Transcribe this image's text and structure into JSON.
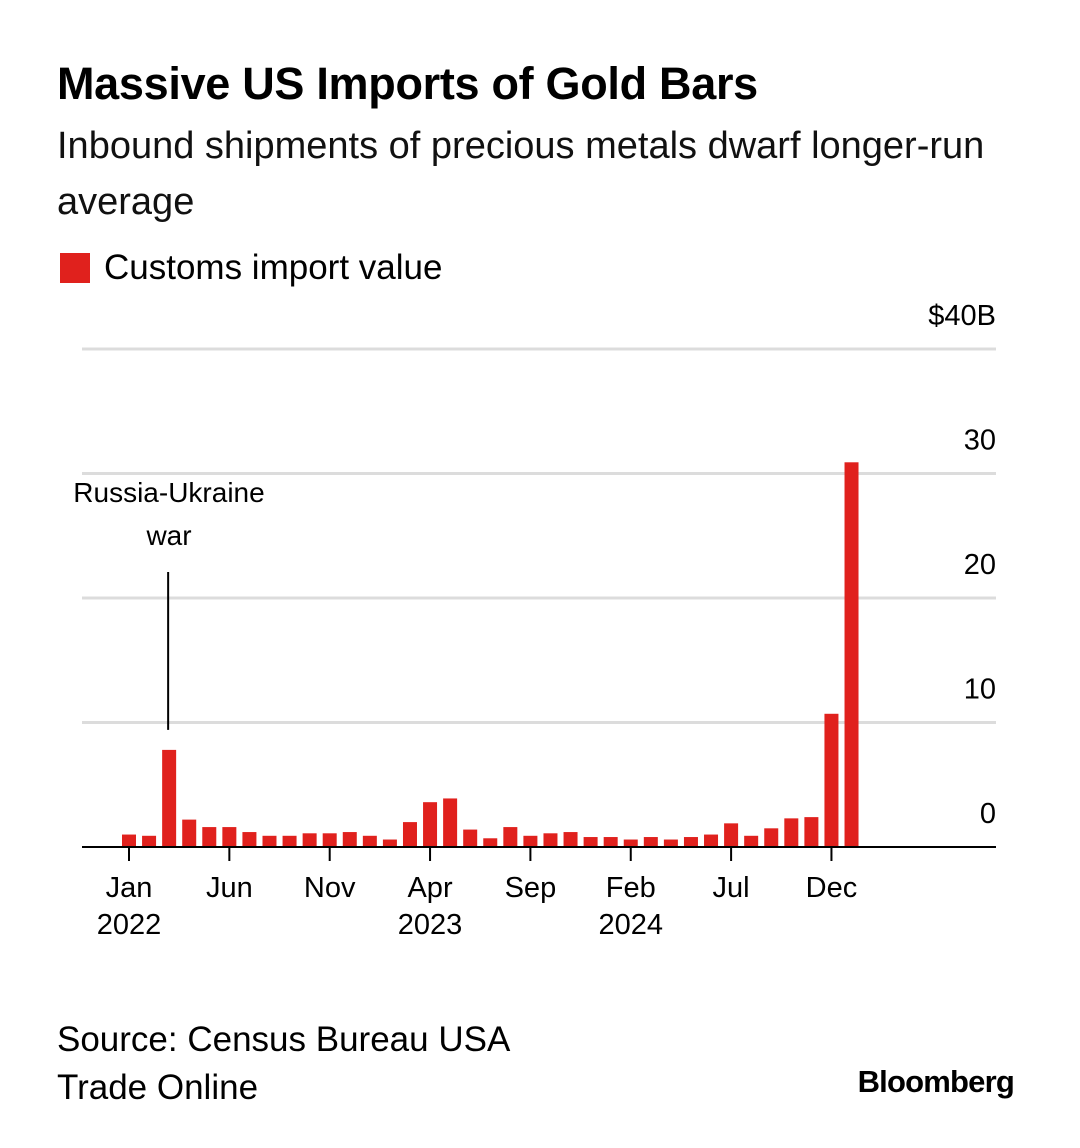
{
  "header": {
    "title": "Massive US Imports of Gold Bars",
    "subtitle": "Inbound shipments of precious metals dwarf longer-run average"
  },
  "legend": {
    "label": "Customs import value",
    "color": "#e0211d"
  },
  "source": {
    "line1": "Source: Census Bureau USA",
    "line2": "Trade Online"
  },
  "brand": {
    "name": "Bloomberg"
  },
  "colors": {
    "bar": "#e0211d",
    "grid": "#dcdcdc",
    "axis": "#000000"
  },
  "chart_data": {
    "type": "bar",
    "title": "Massive US Imports of Gold Bars",
    "subtitle": "Inbound shipments of precious metals dwarf longer-run average",
    "xlabel": "",
    "ylabel": "",
    "ylim": [
      0,
      40
    ],
    "y_ticks": [
      {
        "value": 0,
        "label": "0"
      },
      {
        "value": 10,
        "label": "10"
      },
      {
        "value": 20,
        "label": "20"
      },
      {
        "value": 30,
        "label": "30"
      },
      {
        "value": 40,
        "label": "$40B"
      }
    ],
    "categories": [
      "2022-01",
      "2022-02",
      "2022-03",
      "2022-04",
      "2022-05",
      "2022-06",
      "2022-07",
      "2022-08",
      "2022-09",
      "2022-10",
      "2022-11",
      "2022-12",
      "2023-01",
      "2023-02",
      "2023-03",
      "2023-04",
      "2023-05",
      "2023-06",
      "2023-07",
      "2023-08",
      "2023-09",
      "2023-10",
      "2023-11",
      "2023-12",
      "2024-01",
      "2024-02",
      "2024-03",
      "2024-04",
      "2024-05",
      "2024-06",
      "2024-07",
      "2024-08",
      "2024-09",
      "2024-10",
      "2024-11",
      "2024-12",
      "2025-01"
    ],
    "series": [
      {
        "name": "Customs import value",
        "values": [
          1.0,
          0.9,
          7.8,
          2.2,
          1.6,
          1.6,
          1.2,
          0.9,
          0.9,
          1.1,
          1.1,
          1.2,
          0.9,
          0.6,
          2.0,
          3.6,
          3.9,
          1.4,
          0.7,
          1.6,
          0.9,
          1.1,
          1.2,
          0.8,
          0.8,
          0.6,
          0.8,
          0.6,
          0.8,
          1.0,
          1.9,
          0.9,
          1.5,
          2.3,
          2.4,
          10.7,
          30.9
        ]
      }
    ],
    "x_ticks": [
      {
        "index": 0,
        "month": "Jan",
        "year": "2022"
      },
      {
        "index": 5,
        "month": "Jun",
        "year": ""
      },
      {
        "index": 10,
        "month": "Nov",
        "year": ""
      },
      {
        "index": 15,
        "month": "Apr",
        "year": "2023"
      },
      {
        "index": 20,
        "month": "Sep",
        "year": ""
      },
      {
        "index": 25,
        "month": "Feb",
        "year": "2024"
      },
      {
        "index": 30,
        "month": "Jul",
        "year": ""
      },
      {
        "index": 35,
        "month": "Dec",
        "year": ""
      }
    ],
    "annotations": [
      {
        "index": 2,
        "line1": "Russia-Ukraine",
        "line2": "war"
      }
    ],
    "grid": true,
    "legend_position": "top-left"
  }
}
